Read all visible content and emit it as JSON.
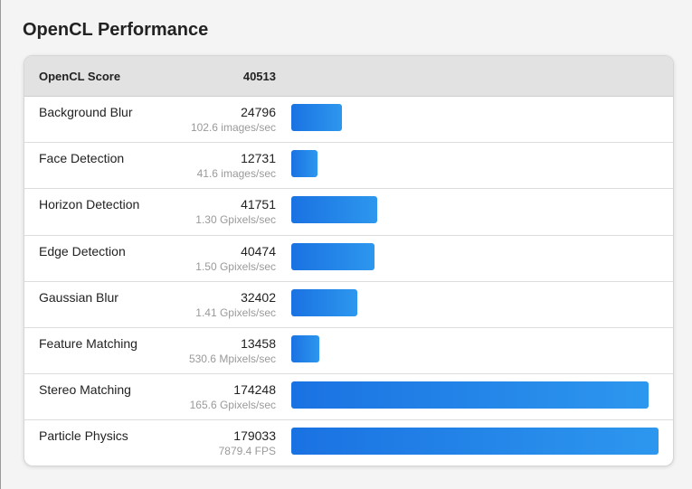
{
  "page": {
    "title": "OpenCL Performance"
  },
  "table": {
    "header": {
      "name": "OpenCL Score",
      "score": "40513"
    },
    "max_score": 179033,
    "rows": [
      {
        "name": "Background Blur",
        "score": "24796",
        "rate": "102.6 images/sec",
        "value": 24796
      },
      {
        "name": "Face Detection",
        "score": "12731",
        "rate": "41.6 images/sec",
        "value": 12731
      },
      {
        "name": "Horizon Detection",
        "score": "41751",
        "rate": "1.30 Gpixels/sec",
        "value": 41751
      },
      {
        "name": "Edge Detection",
        "score": "40474",
        "rate": "1.50 Gpixels/sec",
        "value": 40474
      },
      {
        "name": "Gaussian Blur",
        "score": "32402",
        "rate": "1.41 Gpixels/sec",
        "value": 32402
      },
      {
        "name": "Feature Matching",
        "score": "13458",
        "rate": "530.6 Mpixels/sec",
        "value": 13458
      },
      {
        "name": "Stereo Matching",
        "score": "174248",
        "rate": "165.6 Gpixels/sec",
        "value": 174248
      },
      {
        "name": "Particle Physics",
        "score": "179033",
        "rate": "7879.4 FPS",
        "value": 179033
      }
    ]
  },
  "colors": {
    "bar_start": "#1a72e2",
    "bar_end": "#2d97ee",
    "header_bg": "#e2e2e2"
  }
}
